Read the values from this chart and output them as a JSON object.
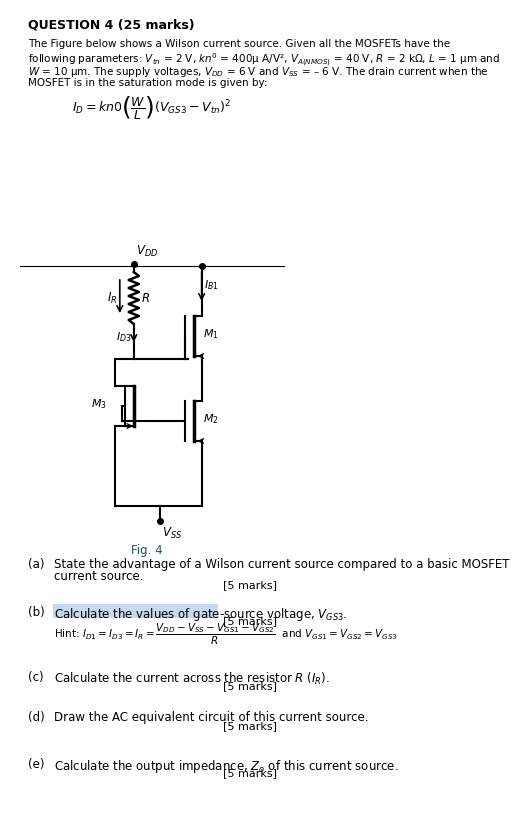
{
  "title": "QUESTION 4 (25 marks)",
  "intro": "The Figure below shows a Wilson current source. Given all the MOSFETs have the\nfollowing parameters: Vₘ = 2 V, knʼ = 400μ A/V², Vₐ₊₊ₘₒₛ₞ = 40 V, R = 2 kΩ, L = 1 μm and\nW = 10 μm. The supply voltages, Vᴅᴅ = 6 V and Vₛₛ = – 6 V. The drain current when the\nMOSFET is in the saturation mode is given by:",
  "fig_caption": "Fig. 4",
  "questions": [
    {
      "label": "(a)",
      "text": "State the advantage of a Wilson current source compared to a basic MOSFET\ncurrent source.",
      "marks": "[5 marks]"
    },
    {
      "label": "(b)",
      "text": "Calculate the values of gate-source voltage, Vᴳₛ₃.",
      "marks": "[5 marks]",
      "highlight": true,
      "hint": "Hint: Iᴰ₁ = Iᴰ₃ = Iᴼ = (Vᴅᴅ−Vₛₛ−Vᴳₛ₁−Vᴳₛ₂) / R  and Vᴳₛ₁ = Vᴳₛ₂ = Vᴳₛ₃"
    },
    {
      "label": "(c)",
      "text": "Calculate the current across the resistor R (Iᴼ).",
      "marks": "[5 marks]"
    },
    {
      "label": "(d)",
      "text": "Draw the AC equivalent circuit of this current source.",
      "marks": "[5 marks]"
    },
    {
      "label": "(e)",
      "text": "Calculate the output impedance, Zₒ of this current source.",
      "marks": "[5 marks]"
    }
  ],
  "bg_color": "#ffffff",
  "text_color": "#000000",
  "highlight_color": "#c5d9f1"
}
